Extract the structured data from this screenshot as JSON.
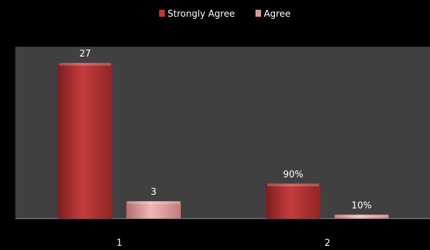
{
  "chart_data": {
    "type": "bar",
    "categories": [
      "1",
      "2"
    ],
    "series": [
      {
        "name": "Strongly Agree",
        "values": [
          27,
          0.9
        ],
        "labels": [
          "27",
          "90%"
        ]
      },
      {
        "name": "Agree",
        "values": [
          3,
          0.1
        ],
        "labels": [
          "3",
          "10%"
        ]
      }
    ],
    "ylim": [
      0,
      27
    ],
    "grid": false,
    "legend": "top-center",
    "colors": {
      "strongly_agree": "#c0393a",
      "agree": "#e6a5a5",
      "plot_background": "#404040",
      "background": "#000000"
    }
  }
}
